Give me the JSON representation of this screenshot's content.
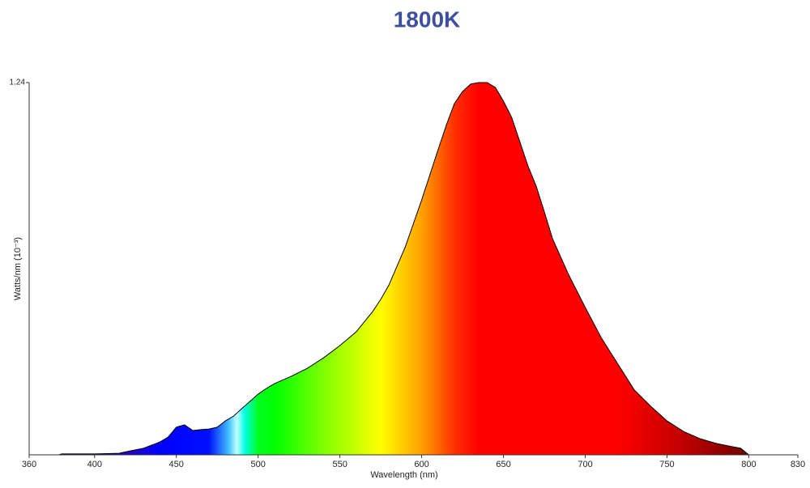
{
  "chart_data": {
    "type": "area",
    "title": "1800K",
    "x_label": "Wavelength (nm)",
    "y_label": "Watts/nm (10⁻³)",
    "x": [
      378,
      380,
      400,
      415,
      420,
      430,
      440,
      445,
      450,
      455,
      460,
      465,
      470,
      475,
      480,
      485,
      490,
      495,
      500,
      505,
      510,
      520,
      530,
      540,
      550,
      560,
      570,
      575,
      580,
      590,
      600,
      610,
      615,
      620,
      625,
      630,
      635,
      640,
      645,
      650,
      655,
      660,
      665,
      670,
      675,
      680,
      690,
      700,
      710,
      720,
      730,
      740,
      750,
      760,
      770,
      780,
      790,
      795,
      800
    ],
    "values": [
      0,
      0.003,
      0.003,
      0.005,
      0.011,
      0.022,
      0.043,
      0.059,
      0.092,
      0.1,
      0.081,
      0.084,
      0.086,
      0.092,
      0.113,
      0.129,
      0.154,
      0.178,
      0.202,
      0.221,
      0.237,
      0.261,
      0.288,
      0.323,
      0.364,
      0.41,
      0.477,
      0.518,
      0.566,
      0.693,
      0.849,
      1.016,
      1.097,
      1.17,
      1.21,
      1.235,
      1.24,
      1.24,
      1.224,
      1.178,
      1.124,
      1.043,
      0.962,
      0.895,
      0.809,
      0.72,
      0.598,
      0.491,
      0.388,
      0.302,
      0.216,
      0.162,
      0.113,
      0.078,
      0.054,
      0.038,
      0.027,
      0.022,
      0
    ],
    "xlim": [
      360,
      830
    ],
    "xticks": [
      360,
      400,
      450,
      500,
      550,
      600,
      650,
      700,
      750,
      800,
      830
    ],
    "ylim": [
      0,
      1.24
    ],
    "yticks": [
      1.24
    ]
  }
}
